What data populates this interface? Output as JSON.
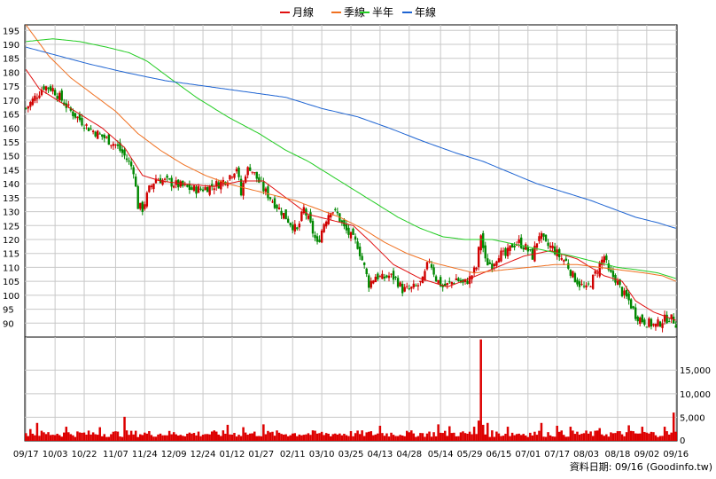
{
  "chart_data": [
    {
      "type": "candlestick",
      "title": "",
      "legend_position": "top-center",
      "legend": [
        {
          "label": "月線",
          "color": "#e01010"
        },
        {
          "label": "季線",
          "color": "#f07020"
        },
        {
          "label": "半年",
          "color": "#22cc22"
        },
        {
          "label": "年線",
          "color": "#1e64d2"
        }
      ],
      "up_color": "#d00000",
      "down_color": "#008800",
      "y_range": [
        85,
        197
      ],
      "y_ticks": [
        90,
        95,
        100,
        105,
        110,
        115,
        120,
        125,
        130,
        135,
        140,
        145,
        150,
        155,
        160,
        165,
        170,
        175,
        180,
        185,
        190,
        195
      ],
      "y_tick_labels": [
        "90",
        "95",
        "100",
        "105",
        "110",
        "115",
        "120",
        "125",
        "130",
        "135",
        "140",
        "145",
        "150",
        "155",
        "160",
        "165",
        "170",
        "175",
        "180",
        "185",
        "190",
        "195"
      ],
      "x_tick_labels": [
        "09/17",
        "10/03",
        "10/22",
        "11/07",
        "11/24",
        "12/09",
        "12/24",
        "01/12",
        "01/27",
        "02/11",
        "03/10",
        "03/25",
        "04/13",
        "04/28",
        "05/14",
        "05/29",
        "06/15",
        "07/01",
        "07/17",
        "08/03",
        "08/18",
        "09/02",
        "09/16"
      ],
      "grid": true,
      "price_anchors": [
        [
          0,
          167
        ],
        [
          4,
          171
        ],
        [
          8,
          175
        ],
        [
          12,
          174
        ],
        [
          16,
          170
        ],
        [
          20,
          166
        ],
        [
          24,
          163
        ],
        [
          28,
          160
        ],
        [
          32,
          158
        ],
        [
          36,
          156
        ],
        [
          40,
          154
        ],
        [
          44,
          150
        ],
        [
          48,
          145
        ],
        [
          50,
          132
        ],
        [
          52,
          131
        ],
        [
          55,
          138
        ],
        [
          58,
          142
        ],
        [
          62,
          141
        ],
        [
          66,
          140
        ],
        [
          70,
          139
        ],
        [
          74,
          138
        ],
        [
          78,
          138
        ],
        [
          82,
          139
        ],
        [
          86,
          140
        ],
        [
          90,
          142
        ],
        [
          94,
          146
        ],
        [
          96,
          136
        ],
        [
          98,
          144
        ],
        [
          100,
          146
        ],
        [
          103,
          142
        ],
        [
          106,
          138
        ],
        [
          110,
          134
        ],
        [
          114,
          130
        ],
        [
          118,
          126
        ],
        [
          121,
          123
        ],
        [
          124,
          131
        ],
        [
          127,
          125
        ],
        [
          130,
          118
        ],
        [
          133,
          126
        ],
        [
          136,
          131
        ],
        [
          139,
          129
        ],
        [
          142,
          124
        ],
        [
          145,
          121
        ],
        [
          148,
          118
        ],
        [
          151,
          110
        ],
        [
          153,
          104
        ],
        [
          156,
          107
        ],
        [
          159,
          106
        ],
        [
          162,
          107
        ],
        [
          165,
          106
        ],
        [
          168,
          102
        ],
        [
          171,
          102
        ],
        [
          174,
          103
        ],
        [
          177,
          105
        ],
        [
          180,
          113
        ],
        [
          183,
          106
        ],
        [
          186,
          103
        ],
        [
          189,
          104
        ],
        [
          192,
          106
        ],
        [
          195,
          104
        ],
        [
          198,
          106
        ],
        [
          201,
          110
        ],
        [
          203,
          122
        ],
        [
          205,
          112
        ],
        [
          208,
          111
        ],
        [
          211,
          115
        ],
        [
          214,
          114
        ],
        [
          217,
          118
        ],
        [
          220,
          119
        ],
        [
          223,
          117
        ],
        [
          226,
          114
        ],
        [
          229,
          122
        ],
        [
          232,
          118
        ],
        [
          235,
          117
        ],
        [
          238,
          114
        ],
        [
          241,
          112
        ],
        [
          244,
          107
        ],
        [
          247,
          104
        ],
        [
          250,
          102
        ],
        [
          253,
          106
        ],
        [
          256,
          111
        ],
        [
          258,
          114
        ],
        [
          260,
          108
        ],
        [
          263,
          106
        ],
        [
          266,
          101
        ],
        [
          269,
          98
        ],
        [
          272,
          93
        ],
        [
          275,
          91
        ],
        [
          278,
          90
        ],
        [
          281,
          89
        ],
        [
          284,
          91
        ],
        [
          287,
          92
        ],
        [
          289,
          91
        ],
        [
          290,
          90
        ]
      ],
      "series": [
        {
          "name": "月線",
          "anchors": [
            [
              0,
              181
            ],
            [
              6,
              174
            ],
            [
              14,
              170
            ],
            [
              24,
              165
            ],
            [
              34,
              160
            ],
            [
              44,
              153
            ],
            [
              52,
              143
            ],
            [
              60,
              141
            ],
            [
              70,
              140
            ],
            [
              84,
              139
            ],
            [
              96,
              141
            ],
            [
              106,
              141
            ],
            [
              116,
              135
            ],
            [
              126,
              129
            ],
            [
              136,
              127
            ],
            [
              146,
              125
            ],
            [
              154,
              119
            ],
            [
              164,
              111
            ],
            [
              176,
              106
            ],
            [
              188,
              103
            ],
            [
              198,
              106
            ],
            [
              210,
              110
            ],
            [
              222,
              114
            ],
            [
              234,
              116
            ],
            [
              246,
              113
            ],
            [
              258,
              107
            ],
            [
              266,
              105
            ],
            [
              272,
              98
            ],
            [
              280,
              94
            ],
            [
              290,
              91
            ]
          ]
        },
        {
          "name": "季線",
          "anchors": [
            [
              0,
              197
            ],
            [
              10,
              186
            ],
            [
              20,
              178
            ],
            [
              30,
              172
            ],
            [
              40,
              166
            ],
            [
              50,
              158
            ],
            [
              60,
              152
            ],
            [
              70,
              147
            ],
            [
              80,
              143
            ],
            [
              90,
              140
            ],
            [
              100,
              138
            ],
            [
              110,
              136
            ],
            [
              120,
              134
            ],
            [
              130,
              131
            ],
            [
              140,
              128
            ],
            [
              150,
              124
            ],
            [
              160,
              119
            ],
            [
              170,
              115
            ],
            [
              180,
              112
            ],
            [
              190,
              110
            ],
            [
              200,
              108
            ],
            [
              212,
              109
            ],
            [
              224,
              110
            ],
            [
              236,
              111
            ],
            [
              246,
              111
            ],
            [
              256,
              110
            ],
            [
              266,
              109
            ],
            [
              276,
              108
            ],
            [
              284,
              107
            ],
            [
              290,
              105
            ]
          ]
        },
        {
          "name": "半年",
          "anchors": [
            [
              0,
              191
            ],
            [
              12,
              192
            ],
            [
              24,
              191
            ],
            [
              36,
              189
            ],
            [
              46,
              187
            ],
            [
              54,
              184
            ],
            [
              64,
              178
            ],
            [
              76,
              171
            ],
            [
              90,
              164
            ],
            [
              104,
              158
            ],
            [
              116,
              152
            ],
            [
              126,
              148
            ],
            [
              136,
              143
            ],
            [
              146,
              138
            ],
            [
              156,
              133
            ],
            [
              166,
              128
            ],
            [
              176,
              124
            ],
            [
              186,
              121
            ],
            [
              196,
              120
            ],
            [
              208,
              120
            ],
            [
              220,
              118
            ],
            [
              232,
              116
            ],
            [
              244,
              114
            ],
            [
              254,
              112
            ],
            [
              264,
              110
            ],
            [
              274,
              109
            ],
            [
              282,
              108
            ],
            [
              290,
              106
            ]
          ]
        },
        {
          "name": "年線",
          "anchors": [
            [
              0,
              189
            ],
            [
              14,
              186
            ],
            [
              28,
              183
            ],
            [
              44,
              180
            ],
            [
              62,
              177
            ],
            [
              80,
              175
            ],
            [
              98,
              173
            ],
            [
              116,
              171
            ],
            [
              132,
              167
            ],
            [
              148,
              164
            ],
            [
              162,
              160
            ],
            [
              178,
              155
            ],
            [
              192,
              151
            ],
            [
              204,
              148
            ],
            [
              216,
              144
            ],
            [
              228,
              140
            ],
            [
              240,
              137
            ],
            [
              252,
              134
            ],
            [
              262,
              131
            ],
            [
              272,
              128
            ],
            [
              282,
              126
            ],
            [
              290,
              124
            ]
          ]
        }
      ],
      "volume": {
        "y_range": [
          0,
          22000
        ],
        "y_ticks": [
          5000,
          10000,
          15000
        ],
        "y_tick_labels": [
          "5,000",
          "10,000",
          "15,000"
        ],
        "color": "#dd0000",
        "base": 1600,
        "spikes": [
          [
            2,
            2500
          ],
          [
            5,
            3800
          ],
          [
            18,
            3000
          ],
          [
            33,
            2900
          ],
          [
            44,
            5100
          ],
          [
            90,
            3400
          ],
          [
            97,
            2900
          ],
          [
            106,
            3500
          ],
          [
            158,
            3200
          ],
          [
            184,
            3500
          ],
          [
            189,
            3100
          ],
          [
            200,
            3000
          ],
          [
            202,
            4300
          ],
          [
            203,
            21500
          ],
          [
            204,
            3400
          ],
          [
            206,
            3800
          ],
          [
            215,
            3000
          ],
          [
            230,
            3800
          ],
          [
            237,
            3200
          ],
          [
            243,
            3000
          ],
          [
            256,
            2700
          ],
          [
            269,
            3300
          ],
          [
            275,
            3000
          ],
          [
            285,
            3000
          ],
          [
            289,
            6000
          ]
        ]
      },
      "footer": "資料日期: 09/16  (Goodinfo.tw)"
    }
  ]
}
